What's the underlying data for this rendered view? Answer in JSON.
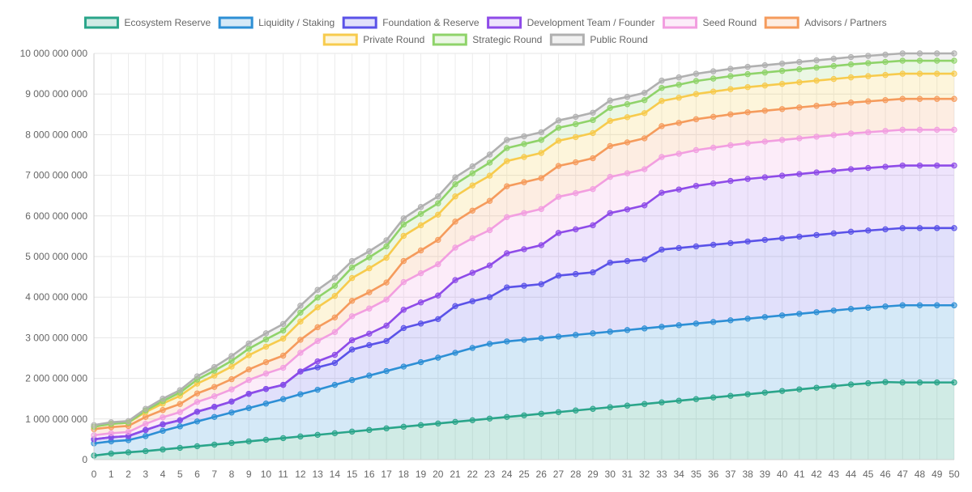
{
  "chart_data": {
    "type": "area",
    "stacked": true,
    "x": [
      0,
      1,
      2,
      3,
      4,
      5,
      6,
      7,
      8,
      9,
      10,
      11,
      12,
      13,
      14,
      15,
      16,
      17,
      18,
      19,
      20,
      21,
      22,
      23,
      24,
      25,
      26,
      27,
      28,
      29,
      30,
      31,
      32,
      33,
      34,
      35,
      36,
      37,
      38,
      39,
      40,
      41,
      42,
      43,
      44,
      45,
      46,
      47,
      48,
      49,
      50
    ],
    "ylim": [
      0,
      10000000000
    ],
    "yticks": [
      0,
      1000000000,
      2000000000,
      3000000000,
      4000000000,
      5000000000,
      6000000000,
      7000000000,
      8000000000,
      9000000000,
      10000000000
    ],
    "ytick_labels": [
      "0",
      "1 000 000 000",
      "2 000 000 000",
      "3 000 000 000",
      "4 000 000 000",
      "5 000 000 000",
      "6 000 000 000",
      "7 000 000 000",
      "8 000 000 000",
      "9 000 000 000",
      "10 000 000 000"
    ],
    "grid": true,
    "legend_position": "top-center",
    "series": [
      {
        "name": "Ecosystem Reserve",
        "color": "#2aa58a",
        "fill": "rgba(42,165,138,0.22)",
        "values": [
          100000000,
          150000000,
          180000000,
          210000000,
          250000000,
          290000000,
          330000000,
          370000000,
          410000000,
          450000000,
          490000000,
          530000000,
          570000000,
          610000000,
          650000000,
          690000000,
          730000000,
          770000000,
          810000000,
          850000000,
          890000000,
          930000000,
          970000000,
          1010000000,
          1050000000,
          1090000000,
          1130000000,
          1170000000,
          1210000000,
          1250000000,
          1290000000,
          1330000000,
          1370000000,
          1410000000,
          1450000000,
          1490000000,
          1530000000,
          1570000000,
          1610000000,
          1650000000,
          1690000000,
          1730000000,
          1770000000,
          1810000000,
          1850000000,
          1880000000,
          1910000000,
          1900000000,
          1900000000,
          1900000000,
          1900000000
        ]
      },
      {
        "name": "Liquidity / Staking",
        "color": "#2d8fd5",
        "fill": "rgba(45,143,213,0.20)",
        "values": [
          300000000,
          300000000,
          300000000,
          370000000,
          460000000,
          530000000,
          610000000,
          680000000,
          750000000,
          820000000,
          890000000,
          960000000,
          1040000000,
          1110000000,
          1190000000,
          1270000000,
          1340000000,
          1410000000,
          1480000000,
          1550000000,
          1620000000,
          1700000000,
          1780000000,
          1840000000,
          1860000000,
          1860000000,
          1860000000,
          1860000000,
          1860000000,
          1860000000,
          1860000000,
          1860000000,
          1860000000,
          1860000000,
          1860000000,
          1860000000,
          1860000000,
          1860000000,
          1860000000,
          1860000000,
          1860000000,
          1860000000,
          1860000000,
          1860000000,
          1860000000,
          1860000000,
          1860000000,
          1900000000,
          1900000000,
          1900000000,
          1900000000
        ]
      },
      {
        "name": "Foundation & Reserve",
        "color": "#5a52e8",
        "fill": "rgba(90,82,232,0.18)",
        "values": [
          100000000,
          100000000,
          100000000,
          150000000,
          160000000,
          150000000,
          240000000,
          250000000,
          270000000,
          350000000,
          360000000,
          350000000,
          560000000,
          550000000,
          540000000,
          750000000,
          750000000,
          740000000,
          950000000,
          950000000,
          950000000,
          1150000000,
          1150000000,
          1150000000,
          1330000000,
          1330000000,
          1330000000,
          1500000000,
          1500000000,
          1500000000,
          1700000000,
          1700000000,
          1700000000,
          1900000000,
          1900000000,
          1900000000,
          1900000000,
          1900000000,
          1900000000,
          1900000000,
          1900000000,
          1900000000,
          1900000000,
          1900000000,
          1900000000,
          1900000000,
          1900000000,
          1900000000,
          1900000000,
          1900000000,
          1900000000
        ]
      },
      {
        "name": "Development Team / Founder",
        "color": "#8e4be8",
        "fill": "rgba(142,75,232,0.15)",
        "values": [
          0,
          0,
          0,
          0,
          0,
          0,
          0,
          0,
          0,
          0,
          0,
          0,
          0,
          150000000,
          200000000,
          230000000,
          280000000,
          380000000,
          450000000,
          520000000,
          580000000,
          640000000,
          700000000,
          780000000,
          840000000,
          900000000,
          960000000,
          1050000000,
          1100000000,
          1160000000,
          1220000000,
          1270000000,
          1330000000,
          1400000000,
          1440000000,
          1490000000,
          1510000000,
          1530000000,
          1540000000,
          1540000000,
          1540000000,
          1540000000,
          1540000000,
          1540000000,
          1540000000,
          1540000000,
          1540000000,
          1540000000,
          1540000000,
          1540000000,
          1540000000
        ]
      },
      {
        "name": "Seed Round",
        "color": "#f29ee0",
        "fill": "rgba(242,158,224,0.20)",
        "values": [
          100000000,
          100000000,
          100000000,
          150000000,
          170000000,
          200000000,
          240000000,
          260000000,
          300000000,
          340000000,
          380000000,
          420000000,
          460000000,
          500000000,
          560000000,
          590000000,
          620000000,
          640000000,
          680000000,
          720000000,
          770000000,
          800000000,
          850000000,
          870000000,
          890000000,
          890000000,
          890000000,
          890000000,
          890000000,
          890000000,
          890000000,
          890000000,
          890000000,
          880000000,
          880000000,
          880000000,
          880000000,
          880000000,
          880000000,
          880000000,
          880000000,
          880000000,
          880000000,
          880000000,
          880000000,
          880000000,
          880000000,
          880000000,
          880000000,
          880000000,
          880000000
        ]
      },
      {
        "name": "Advisors / Partners",
        "color": "#f59b5c",
        "fill": "rgba(245,155,92,0.18)",
        "values": [
          150000000,
          150000000,
          150000000,
          170000000,
          180000000,
          200000000,
          210000000,
          230000000,
          250000000,
          260000000,
          280000000,
          300000000,
          320000000,
          340000000,
          360000000,
          380000000,
          400000000,
          420000000,
          520000000,
          560000000,
          600000000,
          640000000,
          680000000,
          720000000,
          760000000,
          760000000,
          760000000,
          760000000,
          760000000,
          760000000,
          760000000,
          760000000,
          760000000,
          760000000,
          760000000,
          760000000,
          760000000,
          760000000,
          760000000,
          760000000,
          760000000,
          760000000,
          760000000,
          760000000,
          760000000,
          760000000,
          760000000,
          760000000,
          760000000,
          760000000,
          760000000
        ]
      },
      {
        "name": "Private Round",
        "color": "#f7cb4d",
        "fill": "rgba(247,203,77,0.20)",
        "values": [
          60000000,
          80000000,
          80000000,
          120000000,
          160000000,
          200000000,
          240000000,
          280000000,
          310000000,
          350000000,
          380000000,
          420000000,
          450000000,
          490000000,
          530000000,
          560000000,
          590000000,
          610000000,
          620000000,
          620000000,
          620000000,
          620000000,
          620000000,
          620000000,
          620000000,
          620000000,
          620000000,
          620000000,
          620000000,
          620000000,
          620000000,
          620000000,
          620000000,
          620000000,
          620000000,
          620000000,
          620000000,
          620000000,
          620000000,
          620000000,
          620000000,
          620000000,
          620000000,
          620000000,
          620000000,
          620000000,
          620000000,
          620000000,
          620000000,
          620000000,
          620000000
        ]
      },
      {
        "name": "Strategic Round",
        "color": "#8fd36a",
        "fill": "rgba(143,211,106,0.18)",
        "values": [
          0,
          0,
          0,
          40000000,
          60000000,
          80000000,
          100000000,
          120000000,
          140000000,
          160000000,
          180000000,
          200000000,
          220000000,
          240000000,
          250000000,
          260000000,
          270000000,
          280000000,
          280000000,
          280000000,
          280000000,
          300000000,
          300000000,
          320000000,
          320000000,
          320000000,
          320000000,
          320000000,
          320000000,
          320000000,
          320000000,
          320000000,
          320000000,
          320000000,
          320000000,
          320000000,
          320000000,
          320000000,
          320000000,
          320000000,
          320000000,
          320000000,
          320000000,
          320000000,
          320000000,
          320000000,
          320000000,
          320000000,
          320000000,
          320000000,
          320000000
        ]
      },
      {
        "name": "Public Round",
        "color": "#b0b0b0",
        "fill": "rgba(176,176,176,0.18)",
        "values": [
          40000000,
          40000000,
          40000000,
          40000000,
          60000000,
          60000000,
          80000000,
          90000000,
          120000000,
          130000000,
          150000000,
          160000000,
          170000000,
          190000000,
          200000000,
          160000000,
          150000000,
          150000000,
          150000000,
          170000000,
          170000000,
          170000000,
          170000000,
          200000000,
          200000000,
          190000000,
          190000000,
          180000000,
          180000000,
          180000000,
          180000000,
          180000000,
          180000000,
          180000000,
          180000000,
          180000000,
          180000000,
          180000000,
          180000000,
          180000000,
          180000000,
          180000000,
          180000000,
          180000000,
          180000000,
          180000000,
          180000000,
          180000000,
          180000000,
          180000000,
          180000000
        ]
      }
    ]
  }
}
